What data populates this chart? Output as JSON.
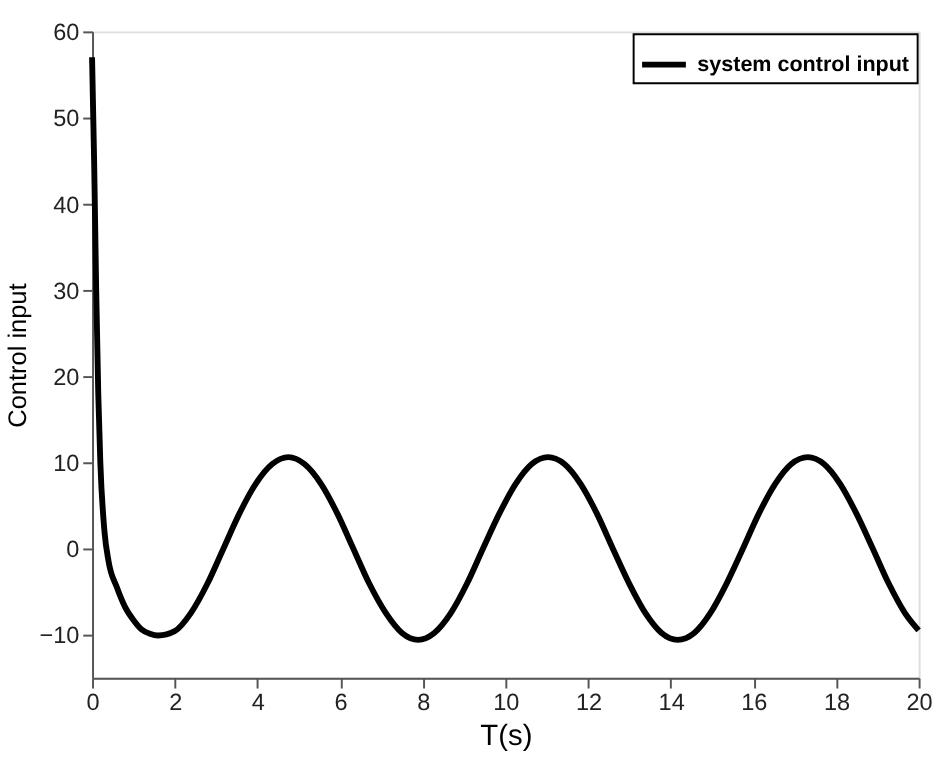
{
  "chart_data": {
    "type": "line",
    "xlabel": "T(s)",
    "ylabel": "Control input",
    "xlim": [
      0,
      20
    ],
    "ylim": [
      -15,
      60
    ],
    "xticks": [
      0,
      2,
      4,
      6,
      8,
      10,
      12,
      14,
      16,
      18,
      20
    ],
    "yticks": [
      -10,
      0,
      10,
      20,
      30,
      40,
      50,
      60
    ],
    "grid": false,
    "legend": "top right",
    "marker": "none",
    "line_style": "solid",
    "series": [
      {
        "name": "system control input",
        "color": "#000000",
        "x": [
          0,
          0.05,
          0.1,
          0.15,
          0.2,
          0.3,
          0.4,
          0.6,
          0.8,
          1.0,
          1.2,
          1.4,
          1.6,
          2.0,
          2.39,
          2.79,
          3.18,
          3.57,
          3.96,
          4.36,
          4.75,
          5.14,
          5.54,
          5.93,
          6.32,
          6.71,
          7.11,
          7.5,
          7.89,
          8.28,
          8.68,
          9.07,
          9.46,
          9.86,
          10.25,
          10.64,
          11.03,
          11.43,
          11.82,
          12.21,
          12.6,
          13.0,
          13.39,
          13.78,
          14.17,
          14.57,
          14.96,
          15.35,
          15.75,
          16.14,
          16.53,
          16.92,
          17.32,
          17.71,
          18.1,
          18.49,
          18.89,
          19.28,
          19.67,
          20.0
        ],
        "values": [
          57,
          45,
          30,
          18,
          10,
          2,
          -1.5,
          -4.5,
          -6.8,
          -8.3,
          -9.4,
          -9.9,
          -10.1,
          -9.6,
          -7.5,
          -4.1,
          0,
          4.1,
          7.5,
          9.8,
          10.6,
          9.8,
          7.5,
          4.1,
          0,
          -4.1,
          -7.5,
          -9.8,
          -10.6,
          -9.8,
          -7.5,
          -4.1,
          0,
          4.1,
          7.5,
          9.8,
          10.6,
          9.8,
          7.5,
          4.1,
          0,
          -4.1,
          -7.5,
          -9.8,
          -10.6,
          -9.8,
          -7.5,
          -4.1,
          0,
          4.1,
          7.5,
          9.8,
          10.6,
          9.8,
          7.5,
          4.1,
          0,
          -4.1,
          -7.5,
          -9.5
        ]
      }
    ]
  }
}
